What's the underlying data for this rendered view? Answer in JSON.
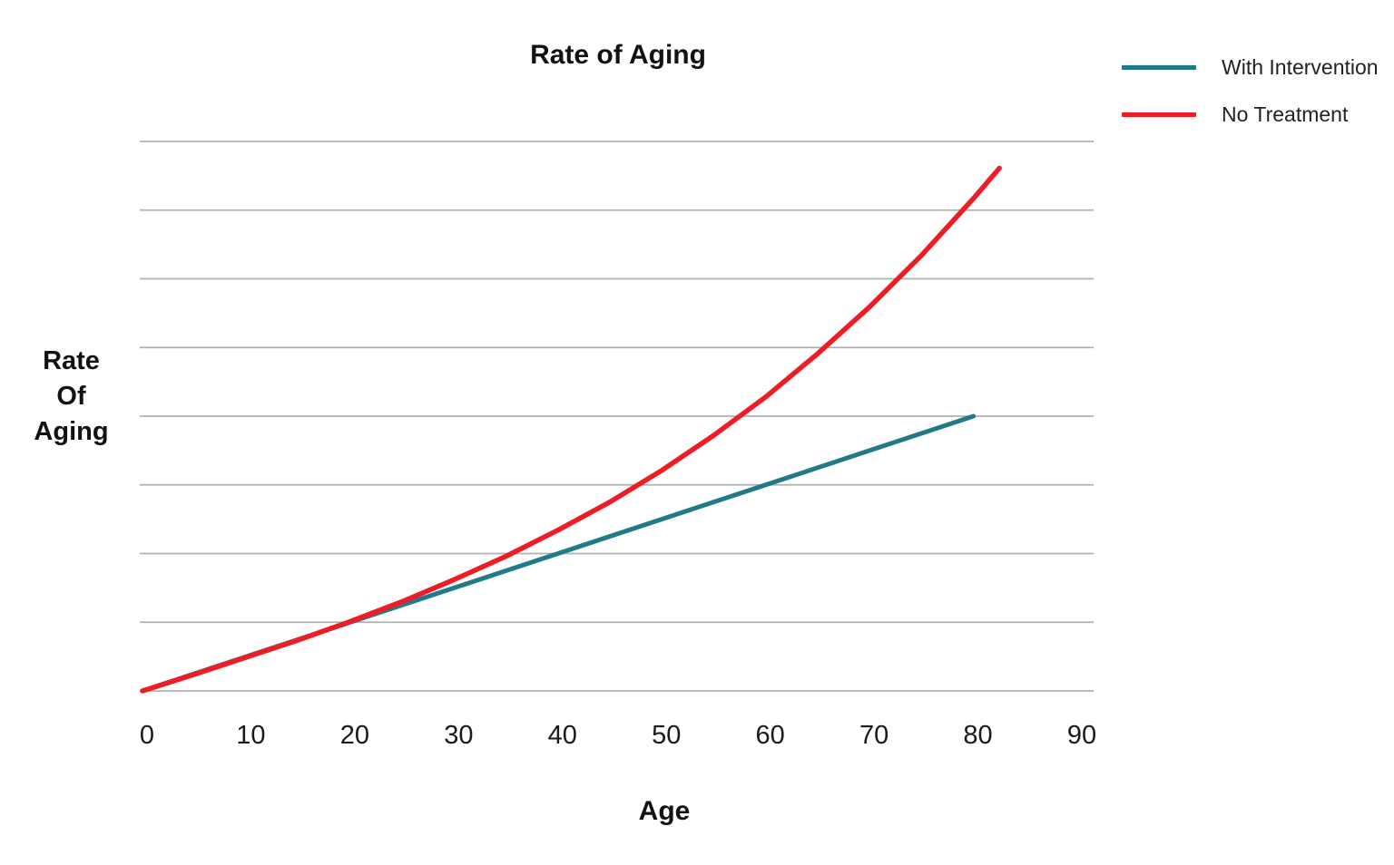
{
  "chart": {
    "title": "Rate of Aging",
    "x_axis_title": "Age",
    "y_axis_title_lines": [
      "Rate",
      "Of",
      "Aging"
    ]
  },
  "chart_data": {
    "type": "line",
    "title": "Rate of Aging",
    "xlabel": "Age",
    "ylabel": "Rate Of Aging",
    "x_ticks": [
      0,
      10,
      20,
      30,
      40,
      50,
      60,
      70,
      80,
      90
    ],
    "xlim": [
      0,
      92
    ],
    "ylim": [
      0,
      8
    ],
    "y_tick_labels_shown": false,
    "grid": {
      "horizontal_lines": 9,
      "vertical_lines": 0,
      "color": "#b0b0b0"
    },
    "legend_position": "top-right",
    "series": [
      {
        "name": "With Intervention",
        "color": "#217a8a",
        "shape": "linear",
        "x": [
          0,
          10,
          20,
          30,
          40,
          50,
          60,
          70,
          80
        ],
        "values": [
          0,
          0.5,
          1.0,
          1.5,
          2.0,
          2.5,
          3.0,
          3.5,
          4.0
        ]
      },
      {
        "name": "No Treatment",
        "color": "#ee1c25",
        "shape": "accelerating-exponential",
        "x": [
          0,
          5,
          10,
          15,
          20,
          25,
          30,
          35,
          40,
          45,
          50,
          55,
          60,
          65,
          70,
          75,
          80,
          82.5
        ],
        "values": [
          0,
          0.24,
          0.49,
          0.74,
          1.01,
          1.3,
          1.62,
          1.96,
          2.34,
          2.75,
          3.21,
          3.72,
          4.28,
          4.91,
          5.59,
          6.34,
          7.17,
          7.61
        ]
      }
    ]
  }
}
